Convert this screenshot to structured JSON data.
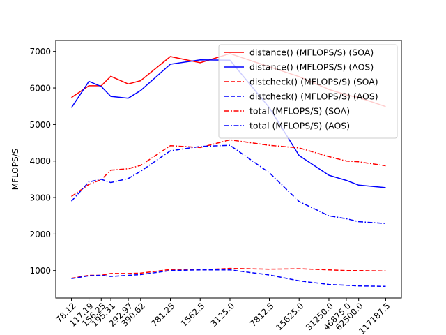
{
  "chart_data": {
    "type": "line",
    "title": "",
    "xlabel": "",
    "ylabel": "MFLOPS/S",
    "x_scale": "log",
    "x": [
      78.12,
      117.19,
      156.25,
      195.31,
      292.97,
      390.62,
      781.25,
      1562.5,
      3125.0,
      7812.5,
      15625.0,
      31250.0,
      46875.0,
      62500.0,
      117187.5
    ],
    "x_tick_labels": [
      "78.12",
      "117.19",
      "156.25",
      "195.31",
      "292.97",
      "390.62",
      "781.25",
      "1562.5",
      "3125.0",
      "7812.5",
      "15625.0",
      "31250.0",
      "46875.0",
      "62500.0",
      "117187.5"
    ],
    "ylim": [
      250,
      7300
    ],
    "y_ticks": [
      1000,
      2000,
      3000,
      4000,
      5000,
      6000,
      7000
    ],
    "y_tick_labels": [
      "1000",
      "2000",
      "3000",
      "4000",
      "5000",
      "6000",
      "7000"
    ],
    "grid": false,
    "legend_position": "top-right",
    "series": [
      {
        "name": "distance() (MFLOPS/S) (SOA)",
        "color": "#ff0000",
        "style": "solid",
        "values": [
          5740,
          6060,
          6060,
          6320,
          6110,
          6200,
          6860,
          6690,
          6940,
          6580,
          6310,
          5960,
          5810,
          5740,
          5490
        ]
      },
      {
        "name": "distance() (MFLOPS/S) (AOS)",
        "color": "#0000ff",
        "style": "solid",
        "values": [
          5460,
          6180,
          6040,
          5770,
          5720,
          5930,
          6650,
          6770,
          6760,
          5460,
          4150,
          3610,
          3470,
          3340,
          3270
        ]
      },
      {
        "name": "distcheck() (MFLOPS/S) (SOA)",
        "color": "#ff0000",
        "style": "dashed",
        "values": [
          790,
          870,
          870,
          920,
          920,
          930,
          1030,
          1020,
          1060,
          1040,
          1050,
          1020,
          1000,
          1000,
          990
        ]
      },
      {
        "name": "distcheck() (MFLOPS/S) (AOS)",
        "color": "#0000ff",
        "style": "dashed",
        "values": [
          780,
          860,
          870,
          840,
          870,
          890,
          1000,
          1020,
          1020,
          880,
          720,
          620,
          600,
          580,
          570
        ]
      },
      {
        "name": "total (MFLOPS/S) (SOA)",
        "color": "#ff0000",
        "style": "dashdot",
        "values": [
          3030,
          3360,
          3490,
          3750,
          3790,
          3880,
          4420,
          4370,
          4580,
          4430,
          4360,
          4120,
          4000,
          3980,
          3870
        ]
      },
      {
        "name": "total (MFLOPS/S) (AOS)",
        "color": "#0000ff",
        "style": "dashdot",
        "values": [
          2900,
          3430,
          3500,
          3410,
          3520,
          3720,
          4280,
          4400,
          4430,
          3680,
          2890,
          2500,
          2420,
          2340,
          2290
        ]
      }
    ]
  }
}
